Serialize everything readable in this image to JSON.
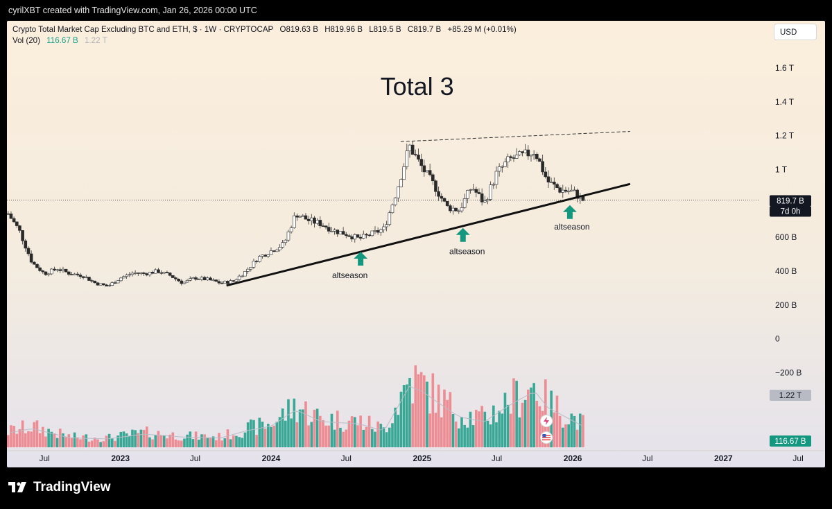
{
  "header": {
    "credit": "cyrilXBT created with TradingView.com, Jan 26, 2026 00:00 UTC"
  },
  "legend": {
    "title": "Crypto Total Market Cap Excluding BTC and ETH, $ · 1W · CRYPTOCAP",
    "open": "O819.63 B",
    "high": "H819.96 B",
    "low": "L819.5 B",
    "close": "C819.7 B",
    "change": "+85.29 M (+0.01%)",
    "vol_label": "Vol (20)",
    "vol_value": "116.67 B",
    "vol_ma": "1.22 T"
  },
  "currency_button": "USD",
  "footer": {
    "brand": "TradingView"
  },
  "colors": {
    "up": "#1a9c86",
    "down": "#ee7c84",
    "arrow": "#13987f"
  },
  "icons": [
    "lightning-icon",
    "us-flag-icon",
    "tradingview-logo-icon"
  ],
  "chart_data": {
    "type": "candlestick",
    "title": "Total 3",
    "ylim": [
      -300,
      1780
    ],
    "y_unit": "B",
    "price_ticks": [
      {
        "value": 1600,
        "label": "1.6 T"
      },
      {
        "value": 1400,
        "label": "1.4 T"
      },
      {
        "value": 1200,
        "label": "1.2 T"
      },
      {
        "value": 1000,
        "label": "1 T"
      },
      {
        "value": 600,
        "label": "600 B"
      },
      {
        "value": 400,
        "label": "400 B"
      },
      {
        "value": 200,
        "label": "200 B"
      },
      {
        "value": 0,
        "label": "0"
      },
      {
        "value": -200,
        "label": "−200 B"
      }
    ],
    "current_price_label": "819.7 B",
    "countdown_label": "7d 0h",
    "volume_ma_label": "1.22 T",
    "volume_label": "116.67 B",
    "x_ticks": [
      {
        "date": "2022-07",
        "label": "Jul",
        "bold": false
      },
      {
        "date": "2023-01",
        "label": "2023",
        "bold": true
      },
      {
        "date": "2023-07",
        "label": "Jul",
        "bold": false
      },
      {
        "date": "2024-01",
        "label": "2024",
        "bold": true
      },
      {
        "date": "2024-07",
        "label": "Jul",
        "bold": false
      },
      {
        "date": "2025-01",
        "label": "2025",
        "bold": true
      },
      {
        "date": "2025-07",
        "label": "Jul",
        "bold": false
      },
      {
        "date": "2026-01",
        "label": "2026",
        "bold": true
      },
      {
        "date": "2026-07",
        "label": "Jul",
        "bold": false
      },
      {
        "date": "2027-01",
        "label": "2027",
        "bold": true
      },
      {
        "date": "2027-07",
        "label": "Jul",
        "bold": false
      }
    ],
    "price_path": [
      [
        "2022-04-01",
        750
      ],
      [
        "2022-05-01",
        640
      ],
      [
        "2022-06-01",
        450
      ],
      [
        "2022-07-01",
        385
      ],
      [
        "2022-08-01",
        415
      ],
      [
        "2022-09-01",
        385
      ],
      [
        "2022-10-01",
        375
      ],
      [
        "2022-11-01",
        330
      ],
      [
        "2022-12-01",
        310
      ],
      [
        "2023-01-01",
        360
      ],
      [
        "2023-02-01",
        390
      ],
      [
        "2023-03-01",
        385
      ],
      [
        "2023-04-01",
        400
      ],
      [
        "2023-05-01",
        375
      ],
      [
        "2023-06-01",
        330
      ],
      [
        "2023-07-01",
        360
      ],
      [
        "2023-08-01",
        350
      ],
      [
        "2023-09-01",
        330
      ],
      [
        "2023-10-01",
        340
      ],
      [
        "2023-11-01",
        400
      ],
      [
        "2023-12-01",
        480
      ],
      [
        "2024-01-01",
        520
      ],
      [
        "2024-02-01",
        560
      ],
      [
        "2024-03-01",
        740
      ],
      [
        "2024-04-01",
        700
      ],
      [
        "2024-05-01",
        680
      ],
      [
        "2024-06-01",
        640
      ],
      [
        "2024-07-01",
        620
      ],
      [
        "2024-08-01",
        590
      ],
      [
        "2024-09-01",
        620
      ],
      [
        "2024-10-01",
        650
      ],
      [
        "2024-11-01",
        880
      ],
      [
        "2024-12-01",
        1140
      ],
      [
        "2025-01-01",
        1010
      ],
      [
        "2025-02-01",
        900
      ],
      [
        "2025-03-01",
        780
      ],
      [
        "2025-04-01",
        760
      ],
      [
        "2025-05-01",
        900
      ],
      [
        "2025-06-01",
        800
      ],
      [
        "2025-07-01",
        980
      ],
      [
        "2025-08-01",
        1060
      ],
      [
        "2025-09-01",
        1080
      ],
      [
        "2025-10-01",
        1110
      ],
      [
        "2025-11-01",
        930
      ],
      [
        "2025-12-01",
        880
      ],
      [
        "2026-01-01",
        870
      ],
      [
        "2026-01-26",
        820
      ]
    ],
    "support_line": [
      [
        "2023-09-15",
        315
      ],
      [
        "2026-05-20",
        915
      ]
    ],
    "resistance_line": [
      [
        "2024-11-10",
        1165
      ],
      [
        "2026-05-20",
        1225
      ]
    ],
    "arrows": [
      {
        "date": "2024-08-05",
        "price": 515
      },
      {
        "date": "2025-04-10",
        "price": 655
      },
      {
        "date": "2025-12-25",
        "price": 790
      }
    ],
    "annotations": [
      {
        "text": "Total 3",
        "date": "2024-12-20",
        "price": 1440,
        "size": "large"
      },
      {
        "text": "altseason",
        "date": "2024-07-10",
        "price": 360,
        "size": "small"
      },
      {
        "text": "altseason",
        "date": "2025-04-20",
        "price": 500,
        "size": "small"
      },
      {
        "text": "altseason",
        "date": "2025-12-30",
        "price": 645,
        "size": "small"
      }
    ],
    "volume_path": [
      [
        "2022-04-01",
        30
      ],
      [
        "2022-06-01",
        40
      ],
      [
        "2022-09-01",
        20
      ],
      [
        "2022-12-01",
        18
      ],
      [
        "2023-03-01",
        28
      ],
      [
        "2023-06-01",
        22
      ],
      [
        "2023-09-01",
        20
      ],
      [
        "2023-11-01",
        35
      ],
      [
        "2024-01-01",
        45
      ],
      [
        "2024-03-01",
        80
      ],
      [
        "2024-05-01",
        55
      ],
      [
        "2024-08-01",
        50
      ],
      [
        "2024-10-01",
        35
      ],
      [
        "2024-12-01",
        130
      ],
      [
        "2025-01-01",
        120
      ],
      [
        "2025-02-01",
        100
      ],
      [
        "2025-04-01",
        65
      ],
      [
        "2025-06-01",
        55
      ],
      [
        "2025-08-01",
        90
      ],
      [
        "2025-10-01",
        120
      ],
      [
        "2025-11-01",
        85
      ],
      [
        "2026-01-26",
        45
      ]
    ],
    "volume_max": 160
  }
}
